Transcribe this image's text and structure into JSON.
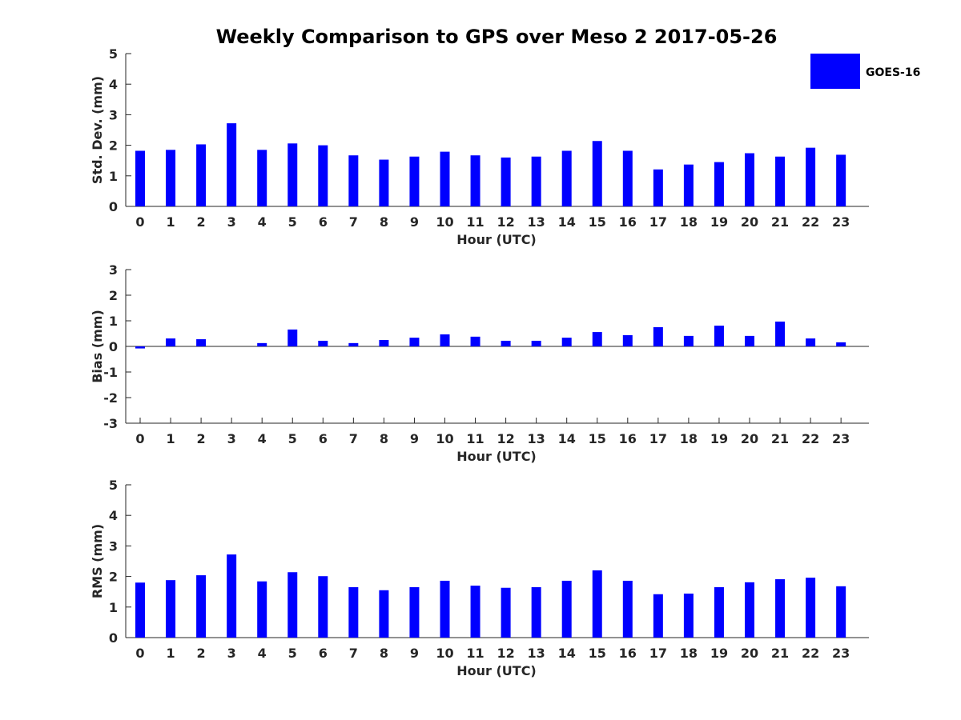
{
  "title": "Weekly Comparison to GPS over Meso 2 2017-05-26",
  "legend": {
    "label": "GOES-16",
    "color": "#0000ff"
  },
  "colors": {
    "bar": "#0000ff",
    "axis": "#262626"
  },
  "chart_data": [
    {
      "type": "bar",
      "name": "std-dev",
      "title": "Weekly Comparison to GPS over Meso 2 2017-05-26",
      "xlabel": "Hour (UTC)",
      "ylabel": "Std. Dev. (mm)",
      "ylim": [
        0,
        5
      ],
      "yticks": [
        "0",
        "1",
        "2",
        "3",
        "4",
        "5"
      ],
      "categories": [
        "0",
        "1",
        "2",
        "3",
        "4",
        "5",
        "6",
        "7",
        "8",
        "9",
        "10",
        "11",
        "12",
        "13",
        "14",
        "15",
        "16",
        "17",
        "18",
        "19",
        "20",
        "21",
        "22",
        "23"
      ],
      "series": [
        {
          "name": "GOES-16",
          "values": [
            1.82,
            1.85,
            2.03,
            2.72,
            1.85,
            2.06,
            2.0,
            1.67,
            1.53,
            1.63,
            1.79,
            1.67,
            1.6,
            1.63,
            1.82,
            2.14,
            1.82,
            1.21,
            1.37,
            1.45,
            1.74,
            1.63,
            1.92,
            1.69
          ]
        }
      ]
    },
    {
      "type": "bar",
      "name": "bias",
      "xlabel": "Hour (UTC)",
      "ylabel": "Bias (mm)",
      "ylim": [
        -3,
        3
      ],
      "yticks": [
        "-3",
        "-2",
        "-1",
        "0",
        "1",
        "2",
        "3"
      ],
      "categories": [
        "0",
        "1",
        "2",
        "3",
        "4",
        "5",
        "6",
        "7",
        "8",
        "9",
        "10",
        "11",
        "12",
        "13",
        "14",
        "15",
        "16",
        "17",
        "18",
        "19",
        "20",
        "21",
        "22",
        "23"
      ],
      "series": [
        {
          "name": "GOES-16",
          "values": [
            -0.08,
            0.31,
            0.28,
            0.0,
            0.13,
            0.66,
            0.22,
            0.13,
            0.25,
            0.34,
            0.47,
            0.38,
            0.22,
            0.22,
            0.34,
            0.56,
            0.44,
            0.75,
            0.41,
            0.81,
            0.41,
            0.97,
            0.31,
            0.16
          ]
        }
      ]
    },
    {
      "type": "bar",
      "name": "rms",
      "xlabel": "Hour (UTC)",
      "ylabel": "RMS (mm)",
      "ylim": [
        0,
        5
      ],
      "yticks": [
        "0",
        "1",
        "2",
        "3",
        "4",
        "5"
      ],
      "categories": [
        "0",
        "1",
        "2",
        "3",
        "4",
        "5",
        "6",
        "7",
        "8",
        "9",
        "10",
        "11",
        "12",
        "13",
        "14",
        "15",
        "16",
        "17",
        "18",
        "19",
        "20",
        "21",
        "22",
        "23"
      ],
      "series": [
        {
          "name": "GOES-16",
          "values": [
            1.8,
            1.88,
            2.04,
            2.72,
            1.84,
            2.14,
            2.01,
            1.65,
            1.55,
            1.65,
            1.86,
            1.7,
            1.63,
            1.65,
            1.86,
            2.2,
            1.86,
            1.42,
            1.44,
            1.65,
            1.81,
            1.91,
            1.96,
            1.68
          ]
        }
      ]
    }
  ]
}
